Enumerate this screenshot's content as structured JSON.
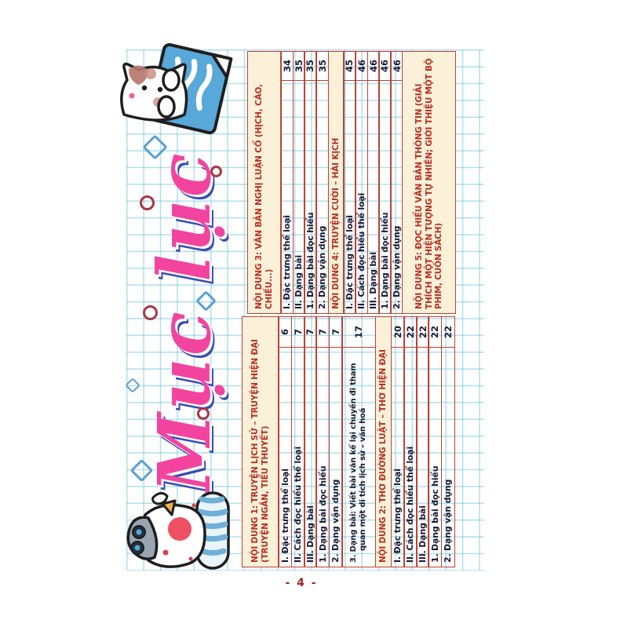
{
  "page": {
    "title": "Mục lục",
    "footer_page_label": "- 4 -"
  },
  "colors": {
    "table_border": "#bf4233",
    "section_header_bg": "#faf1d8",
    "section_header_text": "#b92d21",
    "item_text": "#181a33",
    "grid_line": "#80cbe4",
    "title_pink": "#f2449f",
    "title_accent_blue": "#3a4cb5",
    "footer_red": "#a32222"
  },
  "illustrations": {
    "top_cat": "cat-peeking-over-blue-paper",
    "bottom_cat": "cat-lying-with-striped-roll",
    "decorations": [
      "blue-diamond-sparkle",
      "dark-red-ring",
      "pink-dot"
    ]
  },
  "toc": {
    "tables": [
      {
        "id": "contents-sections-1-2",
        "rows": [
          {
            "type": "header",
            "text": "NỘI DUNG 1: TRUYỆN LỊCH SỬ – TRUYỆN HIỆN ĐẠI (TRUYỆN NGẮN, TIỂU THUYẾT)"
          },
          {
            "type": "item",
            "text": "I. Đặc trưng thể loại",
            "page": "6"
          },
          {
            "type": "item",
            "text": "II. Cách đọc hiểu thể loại",
            "page": "7"
          },
          {
            "type": "item",
            "text": "III. Dạng bài",
            "page": "7"
          },
          {
            "type": "item",
            "text": "1. Dạng bài đọc hiểu",
            "page": "7"
          },
          {
            "type": "item",
            "text": "2. Dạng vận dụng",
            "page": "7"
          },
          {
            "type": "item",
            "text": "3. Dạng bài: Viết bài văn kể lại chuyến đi tham quan một di tích lịch sử – văn hoá",
            "page": "17"
          },
          {
            "type": "header",
            "text": "NỘI DUNG 2: THƠ ĐƯỜNG LUẬT – THƠ HIỆN ĐẠI"
          },
          {
            "type": "item",
            "text": "I. Đặc trưng thể loại",
            "page": "20"
          },
          {
            "type": "item",
            "text": "II. Cách đọc hiểu thể loại",
            "page": "22"
          },
          {
            "type": "item",
            "text": "III. Dạng bài",
            "page": "22"
          },
          {
            "type": "item",
            "text": "1. Dạng bài đọc hiểu",
            "page": "22"
          },
          {
            "type": "item",
            "text": "2. Dạng vận dụng",
            "page": "22"
          }
        ]
      },
      {
        "id": "contents-sections-3-4-5",
        "rows": [
          {
            "type": "header",
            "text": "NỘI DUNG 3: VĂN BẢN NGHỊ LUẬN CỔ (HỊCH, CÁO, CHIẾU...)"
          },
          {
            "type": "item",
            "text": "I. Đặc trưng thể loại",
            "page": "34"
          },
          {
            "type": "item",
            "text": "II. Dạng bài",
            "page": "35"
          },
          {
            "type": "item",
            "text": "1. Dạng bài đọc hiểu",
            "page": "35"
          },
          {
            "type": "item",
            "text": "2. Dạng vận dụng",
            "page": "35"
          },
          {
            "type": "header",
            "text": "NỘI DUNG 4: TRUYỆN CƯỜI – HÀI KỊCH"
          },
          {
            "type": "item",
            "text": "I. Đặc trưng thể loại",
            "page": "45"
          },
          {
            "type": "item",
            "text": "II. Cách đọc hiểu thể loại",
            "page": "46"
          },
          {
            "type": "item",
            "text": "III. Dạng bài",
            "page": "46"
          },
          {
            "type": "item",
            "text": "1. Dạng bài đọc hiểu",
            "page": "46"
          },
          {
            "type": "item",
            "text": "2. Dạng vận dụng",
            "page": "46"
          },
          {
            "type": "header",
            "text": "NỘI DUNG 5: ĐỌC HIỂU VĂN BẢN THÔNG TIN (GIẢI THÍCH MỘT HIỆN TƯỢNG TỰ NHIÊN; GIỚI THIỆU MỘT BỘ PHIM, CUỐN SÁCH)"
          }
        ]
      }
    ]
  }
}
